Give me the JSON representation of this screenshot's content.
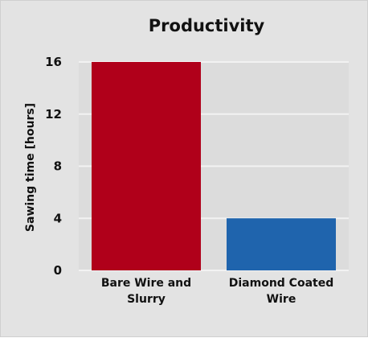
{
  "chart_data": {
    "type": "bar",
    "title": "Productivity",
    "xlabel": "",
    "ylabel": "Sawing time [hours]",
    "categories": [
      "Bare Wire and Slurry",
      "Diamond Coated Wire"
    ],
    "category_lines": [
      [
        "Bare Wire and",
        "Slurry"
      ],
      [
        "Diamond Coated",
        "Wire"
      ]
    ],
    "values": [
      16,
      4
    ],
    "colors": [
      "#b0001a",
      "#1f64ad"
    ],
    "ylim": [
      0,
      16
    ],
    "yticks": [
      0,
      4,
      8,
      12,
      16
    ],
    "grid": true,
    "legend": "none"
  }
}
